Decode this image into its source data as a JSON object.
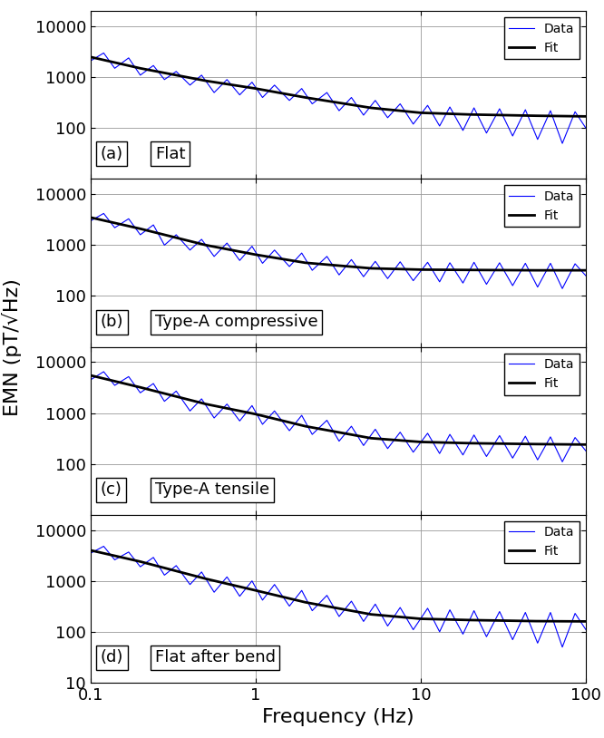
{
  "x_label": "Frequency (Hz)",
  "y_label": "EMN (pT/√Hz)",
  "chart_data": [
    {
      "type": "line",
      "log": true,
      "grid": true,
      "legend": "upper right",
      "tick_labels": "y",
      "annotations": [
        "(a)",
        "Flat"
      ],
      "xlim": [
        0.1,
        100
      ],
      "xticks": [
        0.1,
        1,
        10,
        100
      ],
      "ylim": [
        10,
        20000
      ],
      "yticks": [
        100,
        1000,
        10000
      ],
      "series": [
        {
          "name": "Data",
          "color": "#0000ff",
          "x": [
            0.1,
            0.12,
            0.14,
            0.17,
            0.2,
            0.24,
            0.28,
            0.33,
            0.4,
            0.47,
            0.56,
            0.67,
            0.8,
            0.95,
            1.1,
            1.3,
            1.6,
            1.9,
            2.2,
            2.7,
            3.2,
            3.8,
            4.5,
            5.3,
            6.3,
            7.5,
            9,
            11,
            13,
            15,
            18,
            21,
            25,
            30,
            36,
            43,
            51,
            61,
            72,
            86,
            100
          ],
          "values": [
            2100,
            3000,
            1500,
            2400,
            1100,
            1700,
            900,
            1300,
            700,
            1100,
            500,
            900,
            450,
            800,
            400,
            700,
            350,
            600,
            300,
            500,
            220,
            400,
            180,
            350,
            160,
            300,
            120,
            280,
            110,
            260,
            90,
            250,
            80,
            240,
            70,
            230,
            60,
            220,
            50,
            210,
            100
          ]
        },
        {
          "name": "Fit",
          "color": "#000000",
          "x": [
            0.1,
            0.2,
            0.5,
            1,
            2,
            5,
            10,
            20,
            50,
            100
          ],
          "values": [
            2500,
            1500,
            850,
            600,
            400,
            250,
            200,
            185,
            175,
            170
          ]
        }
      ]
    },
    {
      "type": "line",
      "log": true,
      "grid": true,
      "legend": "upper right",
      "tick_labels": "y",
      "annotations": [
        "(b)",
        "Type-A compressive"
      ],
      "xlim": [
        0.1,
        100
      ],
      "xticks": [
        0.1,
        1,
        10,
        100
      ],
      "ylim": [
        10,
        20000
      ],
      "yticks": [
        100,
        1000,
        10000
      ],
      "series": [
        {
          "name": "Data",
          "color": "#0000ff",
          "x": [
            0.1,
            0.12,
            0.14,
            0.17,
            0.2,
            0.24,
            0.28,
            0.33,
            0.4,
            0.47,
            0.56,
            0.67,
            0.8,
            0.95,
            1.1,
            1.3,
            1.6,
            1.9,
            2.2,
            2.7,
            3.2,
            3.8,
            4.5,
            5.3,
            6.3,
            7.5,
            9,
            11,
            13,
            15,
            18,
            21,
            25,
            30,
            36,
            43,
            51,
            61,
            72,
            86,
            100
          ],
          "values": [
            3000,
            4200,
            2200,
            3300,
            1600,
            2500,
            1000,
            1600,
            800,
            1300,
            600,
            1100,
            500,
            950,
            440,
            800,
            380,
            700,
            320,
            600,
            260,
            520,
            240,
            480,
            220,
            470,
            200,
            460,
            190,
            450,
            180,
            460,
            170,
            450,
            160,
            440,
            150,
            440,
            140,
            430,
            250
          ]
        },
        {
          "name": "Fit",
          "color": "#000000",
          "x": [
            0.1,
            0.2,
            0.5,
            1,
            2,
            5,
            10,
            20,
            50,
            100
          ],
          "values": [
            3500,
            2100,
            1000,
            650,
            450,
            350,
            330,
            325,
            320,
            320
          ]
        }
      ]
    },
    {
      "type": "line",
      "log": true,
      "grid": true,
      "legend": "upper right",
      "tick_labels": "y",
      "annotations": [
        "(c)",
        "Type-A tensile"
      ],
      "xlim": [
        0.1,
        100
      ],
      "xticks": [
        0.1,
        1,
        10,
        100
      ],
      "ylim": [
        10,
        20000
      ],
      "yticks": [
        100,
        1000,
        10000
      ],
      "series": [
        {
          "name": "Data",
          "color": "#0000ff",
          "x": [
            0.1,
            0.12,
            0.14,
            0.17,
            0.2,
            0.24,
            0.28,
            0.33,
            0.4,
            0.47,
            0.56,
            0.67,
            0.8,
            0.95,
            1.1,
            1.3,
            1.6,
            1.9,
            2.2,
            2.7,
            3.2,
            3.8,
            4.5,
            5.3,
            6.3,
            7.5,
            9,
            11,
            13,
            15,
            18,
            21,
            25,
            30,
            36,
            43,
            51,
            61,
            72,
            86,
            100
          ],
          "values": [
            4500,
            6500,
            3500,
            5200,
            2500,
            3800,
            1700,
            2700,
            1100,
            1900,
            800,
            1500,
            700,
            1400,
            600,
            1100,
            450,
            900,
            380,
            720,
            280,
            550,
            230,
            480,
            200,
            420,
            170,
            400,
            160,
            380,
            150,
            370,
            140,
            360,
            130,
            350,
            120,
            340,
            110,
            330,
            180
          ]
        },
        {
          "name": "Fit",
          "color": "#000000",
          "x": [
            0.1,
            0.2,
            0.5,
            1,
            2,
            5,
            10,
            20,
            50,
            100
          ],
          "values": [
            5500,
            3200,
            1500,
            950,
            550,
            320,
            270,
            255,
            245,
            240
          ]
        }
      ]
    },
    {
      "type": "line",
      "log": true,
      "grid": true,
      "legend": "upper right",
      "tick_labels": true,
      "annotations": [
        "(d)",
        "Flat after bend"
      ],
      "xlim": [
        0.1,
        100
      ],
      "xticks": [
        0.1,
        1,
        10,
        100
      ],
      "ylim": [
        10,
        20000
      ],
      "yticks": [
        10,
        100,
        1000,
        10000
      ],
      "series": [
        {
          "name": "Data",
          "color": "#0000ff",
          "x": [
            0.1,
            0.12,
            0.14,
            0.17,
            0.2,
            0.24,
            0.28,
            0.33,
            0.4,
            0.47,
            0.56,
            0.67,
            0.8,
            0.95,
            1.1,
            1.3,
            1.6,
            1.9,
            2.2,
            2.7,
            3.2,
            3.8,
            4.5,
            5.3,
            6.3,
            7.5,
            9,
            11,
            13,
            15,
            18,
            21,
            25,
            30,
            36,
            43,
            51,
            61,
            72,
            86,
            100
          ],
          "values": [
            3500,
            4800,
            2600,
            3700,
            1900,
            2900,
            1300,
            2000,
            850,
            1500,
            600,
            1200,
            500,
            1000,
            420,
            850,
            320,
            650,
            260,
            520,
            200,
            400,
            160,
            350,
            130,
            300,
            110,
            290,
            100,
            270,
            90,
            260,
            80,
            250,
            70,
            240,
            60,
            240,
            50,
            230,
            110
          ]
        },
        {
          "name": "Fit",
          "color": "#000000",
          "x": [
            0.1,
            0.2,
            0.5,
            1,
            2,
            5,
            10,
            20,
            50,
            100
          ],
          "values": [
            4000,
            2400,
            1100,
            650,
            380,
            220,
            180,
            170,
            162,
            160
          ]
        }
      ]
    }
  ]
}
